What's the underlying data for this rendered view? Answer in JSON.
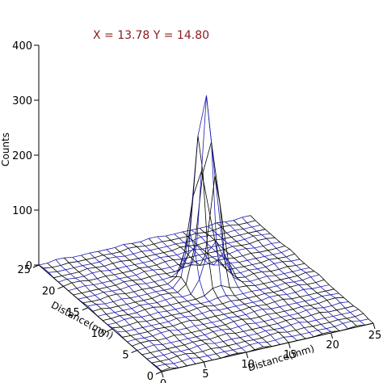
{
  "chart_data": {
    "type": "surface",
    "title": "",
    "annotation": "X = 13.78   Y = 14.80",
    "zlabel": "Counts",
    "xlabel": "Distance(mm)",
    "ylabel": "Distance(mm)",
    "zlim": [
      0,
      400
    ],
    "z_ticks": [
      "0",
      "100",
      "200",
      "300",
      "400"
    ],
    "x_ticks": [
      "0",
      "5",
      "10",
      "15",
      "20",
      "25"
    ],
    "y_ticks": [
      "0",
      "5",
      "10",
      "15",
      "20",
      "25"
    ],
    "xlim": [
      0,
      25
    ],
    "ylim": [
      0,
      25
    ],
    "grid_n": 25,
    "peak": {
      "x": 13.78,
      "y": 14.8,
      "amplitude": 350,
      "sigma_mm": 1.1
    },
    "colors": {
      "wire": "#1b1bb0",
      "wire_dark": "#000000",
      "annotation": "#8b1a1a",
      "axes": "#000000"
    }
  }
}
